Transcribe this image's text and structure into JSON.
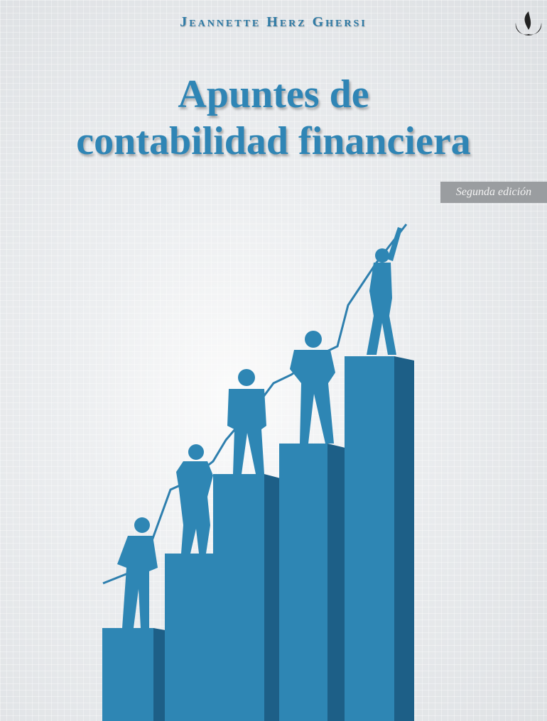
{
  "cover": {
    "author": "Jeannette Herz Ghersi",
    "title_line1": "Apuntes de",
    "title_line2": "contabilidad financiera",
    "edition": "Segunda edición",
    "logo_icon": "university-flame-logo",
    "colors": {
      "title": "#2f85b5",
      "bar_front": "#2e86b4",
      "bar_side": "#1d5f87",
      "edition_bg": "#9a9da0"
    }
  }
}
